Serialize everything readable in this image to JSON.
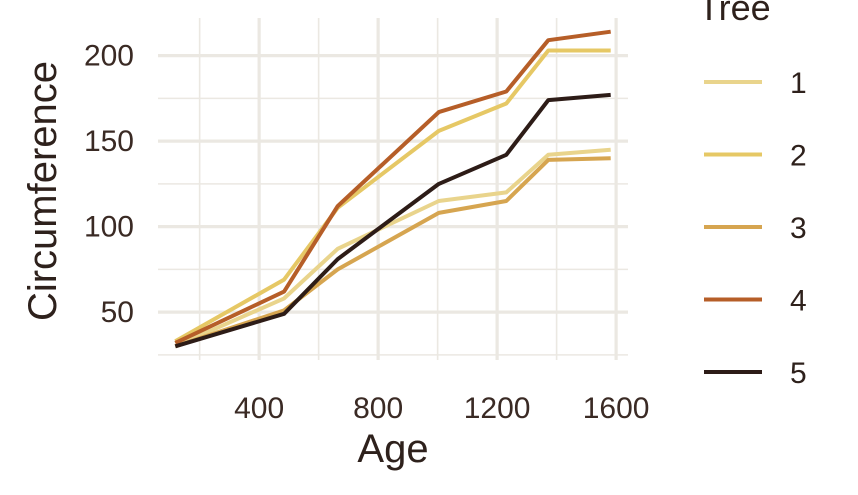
{
  "chart_data": {
    "type": "line",
    "title": "",
    "xlabel": "Age",
    "ylabel": "Circumference",
    "xlim": [
      60,
      1640
    ],
    "ylim": [
      22,
      222
    ],
    "x_ticks": [
      400,
      800,
      1200,
      1600
    ],
    "x_tick_labels": [
      "400",
      "800",
      "1200",
      "1600"
    ],
    "y_ticks": [
      50,
      100,
      150,
      200
    ],
    "y_tick_labels": [
      "50",
      "100",
      "150",
      "200"
    ],
    "grid": true,
    "legend": {
      "title": "Tree",
      "placement": "right"
    },
    "x": [
      118,
      484,
      664,
      1004,
      1231,
      1372,
      1582
    ],
    "series": [
      {
        "name": "1",
        "color": "#e9d48c",
        "values": [
          30,
          58,
          87,
          115,
          120,
          142,
          145
        ]
      },
      {
        "name": "2",
        "color": "#e6c865",
        "values": [
          33,
          69,
          111,
          156,
          172,
          203,
          203
        ]
      },
      {
        "name": "3",
        "color": "#d6a550",
        "values": [
          30,
          51,
          75,
          108,
          115,
          139,
          140
        ]
      },
      {
        "name": "4",
        "color": "#b65e28",
        "values": [
          32,
          62,
          112,
          167,
          179,
          209,
          214
        ]
      },
      {
        "name": "5",
        "color": "#2d1c17",
        "values": [
          30,
          49,
          81,
          125,
          142,
          174,
          177
        ]
      }
    ]
  }
}
